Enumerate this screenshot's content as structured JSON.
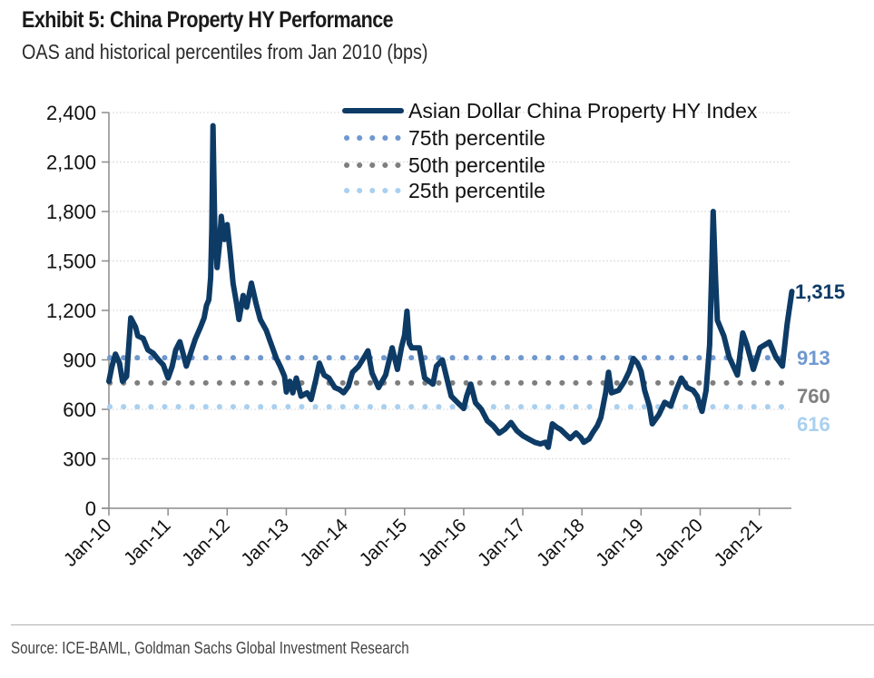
{
  "header": {
    "title": "Exhibit 5: China Property HY Performance",
    "subtitle": "OAS and historical percentiles from Jan 2010 (bps)"
  },
  "footer": {
    "source": "Source: ICE-BAML, Goldman Sachs Global Investment Research"
  },
  "colors": {
    "series": "#0d3b66",
    "p75": "#6f98cf",
    "p50": "#7f7f7f",
    "p25": "#a9d0f0",
    "axis": "#8c8c8c",
    "grid": "#d9d9d9"
  },
  "chart_data": {
    "type": "line",
    "title": "Exhibit 5: China Property HY Performance",
    "subtitle": "OAS and historical percentiles from Jan 2010 (bps)",
    "xlabel": "",
    "ylabel": "",
    "ylim": [
      0,
      2400
    ],
    "yticks": [
      0,
      300,
      600,
      900,
      1200,
      1500,
      1800,
      2100,
      2400
    ],
    "ytick_labels": [
      "0",
      "300",
      "600",
      "900",
      "1,200",
      "1,500",
      "1,800",
      "2,100",
      "2,400"
    ],
    "xlim": [
      2010.0,
      2021.55
    ],
    "xticks": [
      2010,
      2011,
      2012,
      2013,
      2014,
      2015,
      2016,
      2017,
      2018,
      2019,
      2020,
      2021
    ],
    "xtick_labels": [
      "Jan-10",
      "Jan-11",
      "Jan-12",
      "Jan-13",
      "Jan-14",
      "Jan-15",
      "Jan-16",
      "Jan-17",
      "Jan-18",
      "Jan-19",
      "Jan-20",
      "Jan-21"
    ],
    "grid": "horizontal",
    "legend_position": "top-right",
    "series": [
      {
        "name": "Asian Dollar China Property HY Index",
        "style": "solid",
        "points": [
          [
            2010.0,
            770
          ],
          [
            2010.05,
            860
          ],
          [
            2010.11,
            935
          ],
          [
            2010.18,
            880
          ],
          [
            2010.23,
            770
          ],
          [
            2010.3,
            800
          ],
          [
            2010.37,
            1155
          ],
          [
            2010.45,
            1100
          ],
          [
            2010.49,
            1045
          ],
          [
            2010.58,
            1030
          ],
          [
            2010.66,
            960
          ],
          [
            2010.75,
            940
          ],
          [
            2010.84,
            900
          ],
          [
            2010.92,
            870
          ],
          [
            2011.0,
            790
          ],
          [
            2011.07,
            860
          ],
          [
            2011.13,
            960
          ],
          [
            2011.2,
            1010
          ],
          [
            2011.26,
            930
          ],
          [
            2011.31,
            862
          ],
          [
            2011.4,
            960
          ],
          [
            2011.46,
            1025
          ],
          [
            2011.55,
            1100
          ],
          [
            2011.61,
            1155
          ],
          [
            2011.65,
            1230
          ],
          [
            2011.69,
            1265
          ],
          [
            2011.72,
            1400
          ],
          [
            2011.74,
            1700
          ],
          [
            2011.76,
            2320
          ],
          [
            2011.78,
            1900
          ],
          [
            2011.79,
            1720
          ],
          [
            2011.83,
            1460
          ],
          [
            2011.87,
            1600
          ],
          [
            2011.9,
            1770
          ],
          [
            2011.95,
            1630
          ],
          [
            2012.0,
            1720
          ],
          [
            2012.05,
            1550
          ],
          [
            2012.1,
            1365
          ],
          [
            2012.16,
            1240
          ],
          [
            2012.2,
            1145
          ],
          [
            2012.27,
            1290
          ],
          [
            2012.33,
            1220
          ],
          [
            2012.41,
            1365
          ],
          [
            2012.49,
            1240
          ],
          [
            2012.56,
            1145
          ],
          [
            2012.66,
            1080
          ],
          [
            2012.72,
            1020
          ],
          [
            2012.83,
            910
          ],
          [
            2012.9,
            860
          ],
          [
            2012.97,
            800
          ],
          [
            2013.0,
            705
          ],
          [
            2013.06,
            770
          ],
          [
            2013.11,
            700
          ],
          [
            2013.17,
            790
          ],
          [
            2013.25,
            680
          ],
          [
            2013.35,
            700
          ],
          [
            2013.42,
            660
          ],
          [
            2013.5,
            780
          ],
          [
            2013.56,
            880
          ],
          [
            2013.64,
            808
          ],
          [
            2013.72,
            790
          ],
          [
            2013.82,
            732
          ],
          [
            2013.9,
            720
          ],
          [
            2013.97,
            700
          ],
          [
            2014.05,
            740
          ],
          [
            2014.12,
            825
          ],
          [
            2014.22,
            860
          ],
          [
            2014.32,
            917
          ],
          [
            2014.38,
            955
          ],
          [
            2014.45,
            820
          ],
          [
            2014.56,
            732
          ],
          [
            2014.68,
            808
          ],
          [
            2014.79,
            973
          ],
          [
            2014.88,
            842
          ],
          [
            2014.95,
            980
          ],
          [
            2015.0,
            1050
          ],
          [
            2015.04,
            1195
          ],
          [
            2015.08,
            1000
          ],
          [
            2015.12,
            973
          ],
          [
            2015.25,
            973
          ],
          [
            2015.34,
            790
          ],
          [
            2015.48,
            753
          ],
          [
            2015.54,
            862
          ],
          [
            2015.64,
            900
          ],
          [
            2015.72,
            780
          ],
          [
            2015.79,
            680
          ],
          [
            2015.9,
            640
          ],
          [
            2016.0,
            605
          ],
          [
            2016.05,
            680
          ],
          [
            2016.12,
            753
          ],
          [
            2016.2,
            640
          ],
          [
            2016.3,
            600
          ],
          [
            2016.4,
            530
          ],
          [
            2016.5,
            500
          ],
          [
            2016.6,
            455
          ],
          [
            2016.7,
            480
          ],
          [
            2016.8,
            520
          ],
          [
            2016.9,
            470
          ],
          [
            2017.0,
            440
          ],
          [
            2017.1,
            420
          ],
          [
            2017.2,
            400
          ],
          [
            2017.3,
            390
          ],
          [
            2017.38,
            400
          ],
          [
            2017.43,
            370
          ],
          [
            2017.5,
            512
          ],
          [
            2017.58,
            490
          ],
          [
            2017.64,
            478
          ],
          [
            2017.72,
            450
          ],
          [
            2017.8,
            423
          ],
          [
            2017.9,
            457
          ],
          [
            2017.98,
            430
          ],
          [
            2018.03,
            400
          ],
          [
            2018.12,
            420
          ],
          [
            2018.18,
            457
          ],
          [
            2018.26,
            500
          ],
          [
            2018.32,
            550
          ],
          [
            2018.4,
            700
          ],
          [
            2018.45,
            825
          ],
          [
            2018.5,
            700
          ],
          [
            2018.62,
            715
          ],
          [
            2018.72,
            770
          ],
          [
            2018.8,
            830
          ],
          [
            2018.87,
            908
          ],
          [
            2018.94,
            880
          ],
          [
            2019.0,
            830
          ],
          [
            2019.06,
            715
          ],
          [
            2019.14,
            620
          ],
          [
            2019.19,
            512
          ],
          [
            2019.3,
            567
          ],
          [
            2019.4,
            643
          ],
          [
            2019.5,
            620
          ],
          [
            2019.6,
            720
          ],
          [
            2019.68,
            790
          ],
          [
            2019.78,
            732
          ],
          [
            2019.88,
            715
          ],
          [
            2019.95,
            680
          ],
          [
            2020.03,
            588
          ],
          [
            2020.1,
            715
          ],
          [
            2020.16,
            990
          ],
          [
            2020.2,
            1500
          ],
          [
            2020.22,
            1800
          ],
          [
            2020.26,
            1400
          ],
          [
            2020.29,
            1140
          ],
          [
            2020.4,
            1045
          ],
          [
            2020.49,
            917
          ],
          [
            2020.63,
            808
          ],
          [
            2020.72,
            1063
          ],
          [
            2020.79,
            990
          ],
          [
            2020.9,
            842
          ],
          [
            2021.01,
            973
          ],
          [
            2021.17,
            1008
          ],
          [
            2021.28,
            917
          ],
          [
            2021.39,
            862
          ],
          [
            2021.47,
            1118
          ],
          [
            2021.55,
            1315
          ]
        ],
        "last_value": 1315,
        "last_label": "1,315"
      },
      {
        "name": "75th percentile",
        "style": "dotted",
        "value": 913,
        "label": "913"
      },
      {
        "name": "50th percentile",
        "style": "dotted",
        "value": 760,
        "label": "760"
      },
      {
        "name": "25th percentile",
        "style": "dotted",
        "value": 616,
        "label": "616"
      }
    ],
    "legend": [
      "Asian Dollar China Property HY Index",
      "75th percentile",
      "50th percentile",
      "25th percentile"
    ]
  }
}
